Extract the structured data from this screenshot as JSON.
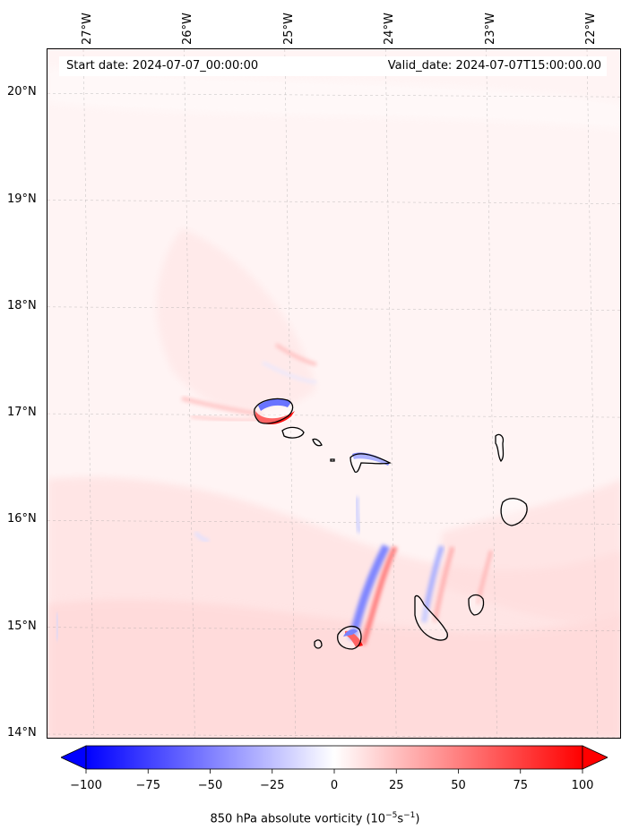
{
  "header": {
    "start_date": "Start date: 2024-07-07_00:00:00",
    "valid_date": "Valid_date: 2024-07-07T15:00:00.00"
  },
  "axes": {
    "longitude_labels": [
      {
        "text": "27°W",
        "lon": -27
      },
      {
        "text": "26°W",
        "lon": -26
      },
      {
        "text": "25°W",
        "lon": -25
      },
      {
        "text": "24°W",
        "lon": -24
      },
      {
        "text": "23°W",
        "lon": -23
      },
      {
        "text": "22°W",
        "lon": -22
      }
    ],
    "latitude_labels": [
      {
        "text": "20°N",
        "lat": 20
      },
      {
        "text": "19°N",
        "lat": 19
      },
      {
        "text": "18°N",
        "lat": 18
      },
      {
        "text": "17°N",
        "lat": 17
      },
      {
        "text": "16°N",
        "lat": 16
      },
      {
        "text": "15°N",
        "lat": 15
      },
      {
        "text": "14°N",
        "lat": 14
      }
    ]
  },
  "colorbar": {
    "min": -100,
    "max": 100,
    "ticks": [
      "−100",
      "−75",
      "−50",
      "−25",
      "0",
      "25",
      "50",
      "75",
      "100"
    ],
    "tick_values": [
      -100,
      -75,
      -50,
      -25,
      0,
      25,
      50,
      75,
      100
    ],
    "label_main": "850 hPa absolute vorticity (10",
    "label_exp1": "−5",
    "label_mid": "s",
    "label_exp2": "−1",
    "label_end": ")",
    "colors": {
      "negative": "#0000ff",
      "zero": "#ffffff",
      "positive": "#ff0000"
    }
  },
  "features": {
    "islands": [
      "santo-antao",
      "sao-vicente",
      "santa-luzia",
      "branco",
      "sao-nicolau",
      "sal",
      "boa-vista",
      "maio",
      "santiago",
      "fogo",
      "brava"
    ]
  }
}
